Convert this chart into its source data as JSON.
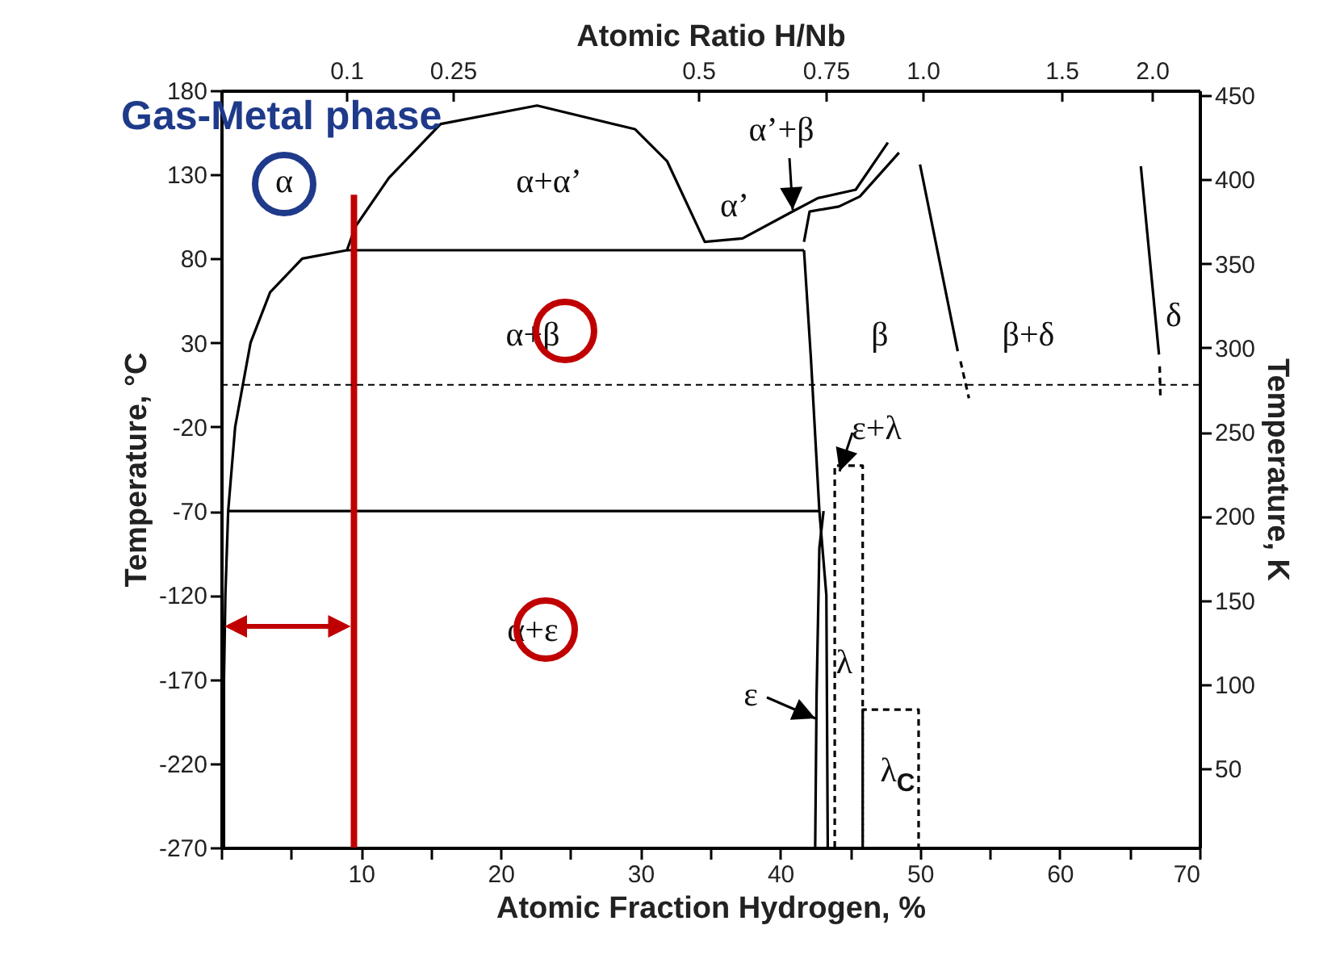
{
  "chart_data": {
    "type": "line",
    "title": "Gas-Metal phase",
    "xlabel": "Atomic Fraction Hydrogen, %",
    "ylabel": "Temperature, °C",
    "y2label": "Temperature, K",
    "x2label": "Atomic Ratio H/Nb",
    "xlim": [
      0,
      70
    ],
    "xticks": [
      {
        "value": 0,
        "label": null
      },
      {
        "value": 5,
        "label": null
      },
      10,
      {
        "value": 15,
        "label": null
      },
      20,
      {
        "value": 25,
        "label": null
      },
      30,
      {
        "value": 35,
        "label": null
      },
      40,
      {
        "value": 45,
        "label": null
      },
      50,
      {
        "value": 55,
        "label": null
      },
      60,
      {
        "value": 65,
        "label": null
      },
      70
    ],
    "ylim": [
      -270,
      180
    ],
    "yticks": [
      -270,
      -220,
      -170,
      -120,
      -70,
      -20,
      30,
      80,
      130,
      180
    ],
    "y2lim": [
      3,
      453
    ],
    "y2ticks": [
      50,
      100,
      150,
      200,
      250,
      300,
      350,
      400,
      450
    ],
    "grid": false,
    "series": [
      {
        "color": "#000000",
        "x": [
          0.2,
          0.2,
          0.3,
          0.5,
          1,
          2.1,
          3.5,
          5.8,
          9,
          9.6,
          12,
          15.7,
          22.6,
          29.6,
          31.9,
          34.6,
          37.3,
          41.1,
          42.7,
          45.4,
          47.7
        ],
        "values": [
          -270,
          -170,
          -120,
          -70,
          -20,
          30,
          60,
          80,
          85,
          99,
          128,
          160,
          171,
          157,
          138,
          90,
          92,
          109,
          116,
          121,
          149
        ]
      },
      {
        "color": "#000000",
        "x": [
          41.7,
          42.1,
          44.2,
          45.7,
          48.5
        ],
        "values": [
          90,
          108,
          111,
          117,
          143
        ]
      },
      {
        "color": "#000000",
        "x": [
          9,
          41.7
        ],
        "values": [
          85,
          85
        ]
      },
      {
        "color": "#000000",
        "x": [
          0.5,
          42.8
        ],
        "values": [
          -70,
          -70
        ]
      },
      {
        "color": "#000000",
        "x": [
          41.7,
          42.2,
          42.8,
          43.3,
          43.4
        ],
        "values": [
          85,
          20,
          -70,
          -120,
          -270
        ]
      },
      {
        "color": "#000000",
        "x": [
          43.1,
          42.8,
          42.6,
          42.5
        ],
        "values": [
          -70,
          -92,
          -180,
          -270
        ]
      },
      {
        "color": "#000000",
        "x": [
          50,
          52.7
        ],
        "values": [
          136,
          25
        ]
      },
      {
        "color": "#000000",
        "x": [
          52.9,
          53.5
        ],
        "values": [
          19,
          -3
        ],
        "line_style": "dashed"
      },
      {
        "color": "#000000",
        "x": [
          65.8,
          67.1
        ],
        "values": [
          135,
          23
        ]
      },
      {
        "color": "#000000",
        "x": [
          67.15,
          67.2
        ],
        "values": [
          16,
          -3
        ],
        "line_style": "dashed"
      },
      {
        "color": "#000000",
        "x": [
          43.9,
          43.9,
          45.9,
          45.9
        ],
        "values": [
          -270,
          -43,
          -43,
          -270
        ],
        "line_style": "dashed"
      },
      {
        "color": "#000000",
        "x": [
          45.9,
          45.9,
          49.9,
          49.9
        ],
        "values": [
          -270,
          -188,
          -188,
          -270
        ],
        "line_style": "dashed"
      },
      {
        "color": "#c00000",
        "x": [
          9.5,
          9.5
        ],
        "values": [
          118,
          -270
        ]
      }
    ],
    "ref_lines": [
      {
        "axis": "y",
        "value": 5,
        "color": "#000000",
        "line_style": "dashed"
      }
    ],
    "annotations": [
      "α",
      "α+α’",
      "α+β",
      "α’",
      "α’+β",
      "β",
      "β+δ",
      "δ",
      "ε+λ",
      "λ",
      "λ$_{C}$",
      "α+ε",
      "ε",
      "0.1",
      "0.25",
      "0.5",
      "0.75",
      "1.0",
      "1.5",
      "2.0"
    ]
  }
}
